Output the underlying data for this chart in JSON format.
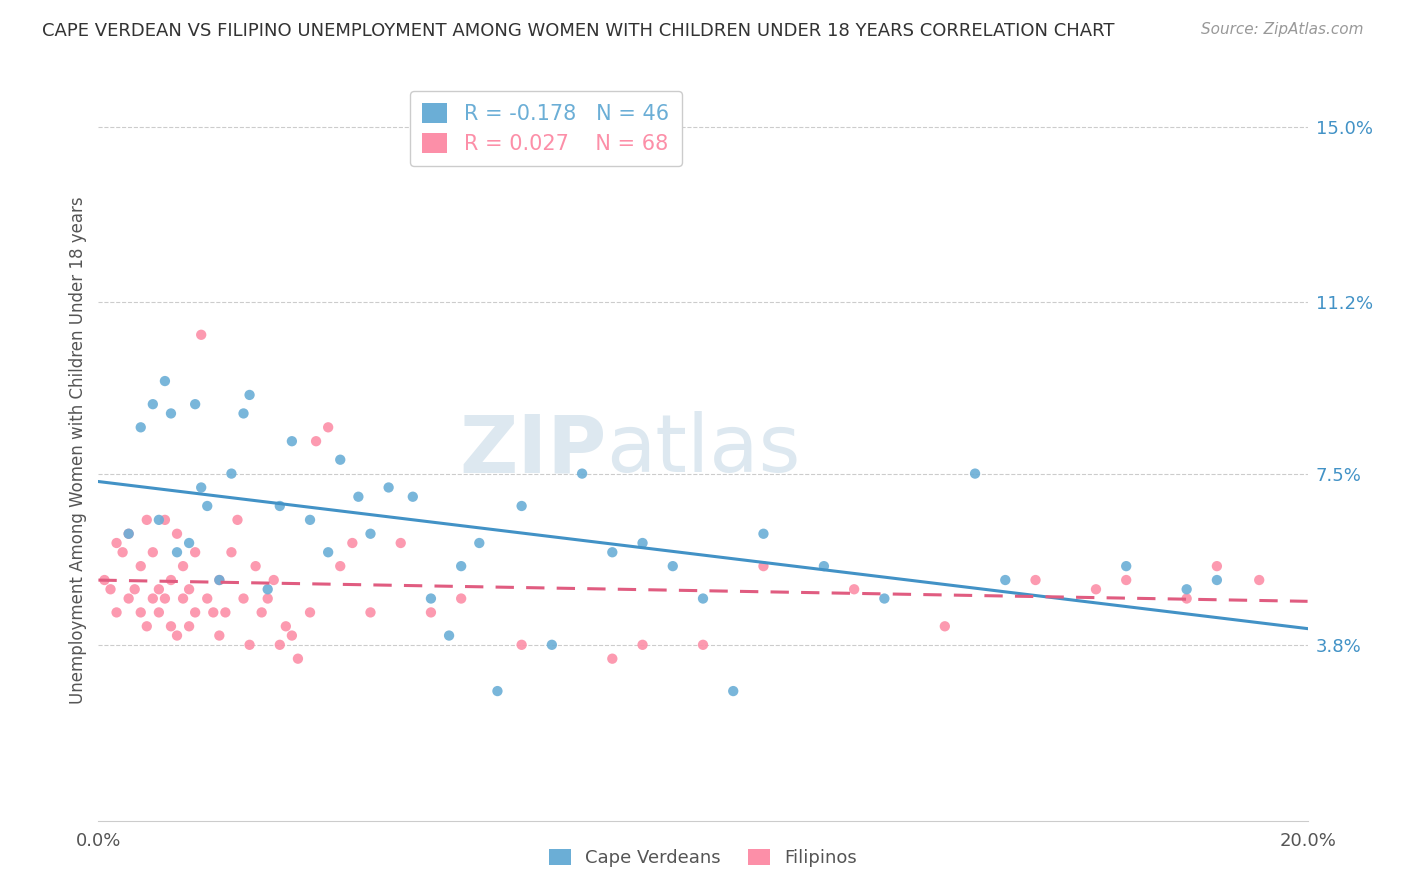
{
  "title": "CAPE VERDEAN VS FILIPINO UNEMPLOYMENT AMONG WOMEN WITH CHILDREN UNDER 18 YEARS CORRELATION CHART",
  "source": "Source: ZipAtlas.com",
  "ylabel": "Unemployment Among Women with Children Under 18 years",
  "right_ytick_vals": [
    3.8,
    7.5,
    11.2,
    15.0
  ],
  "right_ytick_labels": [
    "3.8%",
    "7.5%",
    "11.2%",
    "15.0%"
  ],
  "watermark_part1": "ZIP",
  "watermark_part2": "atlas",
  "cape_verdean_color": "#6baed6",
  "filipino_color": "#fc8fa8",
  "cape_verdean_trend_color": "#4292c6",
  "filipino_trend_color": "#e05c80",
  "cape_verdean_R": -0.178,
  "cape_verdean_N": 46,
  "filipino_R": 0.027,
  "filipino_N": 68,
  "cape_verdean_x": [
    0.5,
    0.7,
    0.9,
    1.0,
    1.1,
    1.2,
    1.3,
    1.5,
    1.6,
    1.7,
    1.8,
    2.0,
    2.2,
    2.4,
    2.5,
    2.8,
    3.0,
    3.2,
    3.5,
    3.8,
    4.0,
    4.3,
    4.5,
    4.8,
    5.2,
    5.5,
    5.8,
    6.0,
    6.3,
    6.6,
    7.0,
    7.5,
    8.0,
    8.5,
    9.0,
    9.5,
    10.0,
    10.5,
    11.0,
    12.0,
    13.0,
    14.5,
    15.0,
    17.0,
    18.0,
    18.5
  ],
  "cape_verdean_y": [
    6.2,
    8.5,
    9.0,
    6.5,
    9.5,
    8.8,
    5.8,
    6.0,
    9.0,
    7.2,
    6.8,
    5.2,
    7.5,
    8.8,
    9.2,
    5.0,
    6.8,
    8.2,
    6.5,
    5.8,
    7.8,
    7.0,
    6.2,
    7.2,
    7.0,
    4.8,
    4.0,
    5.5,
    6.0,
    2.8,
    6.8,
    3.8,
    7.5,
    5.8,
    6.0,
    5.5,
    4.8,
    2.8,
    6.2,
    5.5,
    4.8,
    7.5,
    5.2,
    5.5,
    5.0,
    5.2
  ],
  "filipino_x": [
    0.1,
    0.2,
    0.3,
    0.3,
    0.4,
    0.5,
    0.5,
    0.6,
    0.7,
    0.7,
    0.8,
    0.8,
    0.9,
    0.9,
    1.0,
    1.0,
    1.1,
    1.1,
    1.2,
    1.2,
    1.3,
    1.3,
    1.4,
    1.4,
    1.5,
    1.5,
    1.6,
    1.6,
    1.7,
    1.8,
    1.9,
    2.0,
    2.0,
    2.1,
    2.2,
    2.3,
    2.4,
    2.5,
    2.6,
    2.7,
    2.8,
    2.9,
    3.0,
    3.1,
    3.2,
    3.3,
    3.5,
    3.6,
    3.8,
    4.0,
    4.2,
    4.5,
    5.0,
    5.5,
    6.0,
    7.0,
    8.5,
    9.0,
    10.0,
    11.0,
    12.5,
    14.0,
    15.5,
    16.5,
    17.0,
    18.0,
    18.5,
    19.2
  ],
  "filipino_y": [
    5.2,
    5.0,
    4.5,
    6.0,
    5.8,
    4.8,
    6.2,
    5.0,
    5.5,
    4.5,
    6.5,
    4.2,
    5.8,
    4.8,
    5.0,
    4.5,
    6.5,
    4.8,
    5.2,
    4.2,
    6.2,
    4.0,
    4.8,
    5.5,
    5.0,
    4.2,
    4.5,
    5.8,
    10.5,
    4.8,
    4.5,
    5.2,
    4.0,
    4.5,
    5.8,
    6.5,
    4.8,
    3.8,
    5.5,
    4.5,
    4.8,
    5.2,
    3.8,
    4.2,
    4.0,
    3.5,
    4.5,
    8.2,
    8.5,
    5.5,
    6.0,
    4.5,
    6.0,
    4.5,
    4.8,
    3.8,
    3.5,
    3.8,
    3.8,
    5.5,
    5.0,
    4.2,
    5.2,
    5.0,
    5.2,
    4.8,
    5.5,
    5.2
  ]
}
